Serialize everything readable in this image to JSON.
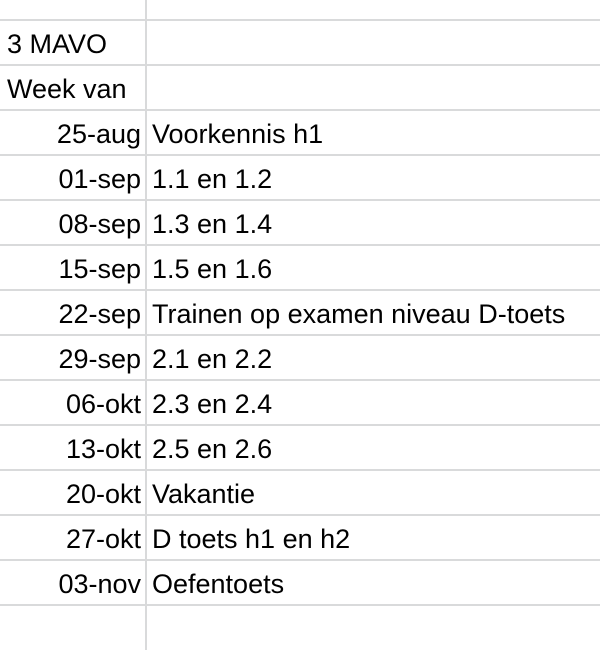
{
  "app": {
    "type": "spreadsheet-crop",
    "language": "nl"
  },
  "colors": {
    "gridline": "#d9dadb",
    "text": "#000000",
    "background": "#ffffff"
  },
  "sheet": {
    "class_title": "3 MAVO",
    "column_header": "Week van"
  },
  "rows": [
    {
      "week": "",
      "topic": ""
    },
    {
      "week": "3 MAVO",
      "topic": ""
    },
    {
      "week": "Week van",
      "topic": ""
    },
    {
      "week": "25-aug",
      "topic": "Voorkennis h1"
    },
    {
      "week": "01-sep",
      "topic": "1.1 en 1.2"
    },
    {
      "week": "08-sep",
      "topic": "1.3 en 1.4"
    },
    {
      "week": "15-sep",
      "topic": "1.5 en 1.6"
    },
    {
      "week": "22-sep",
      "topic": "Trainen op examen niveau D-toets"
    },
    {
      "week": "29-sep",
      "topic": "2.1 en 2.2"
    },
    {
      "week": "06-okt",
      "topic": "2.3 en 2.4"
    },
    {
      "week": "13-okt",
      "topic": "2.5 en 2.6"
    },
    {
      "week": "20-okt",
      "topic": "Vakantie"
    },
    {
      "week": "27-okt",
      "topic": "D toets h1 en h2"
    },
    {
      "week": "03-nov",
      "topic": "Oefentoets"
    },
    {
      "week": "",
      "topic": ""
    }
  ]
}
